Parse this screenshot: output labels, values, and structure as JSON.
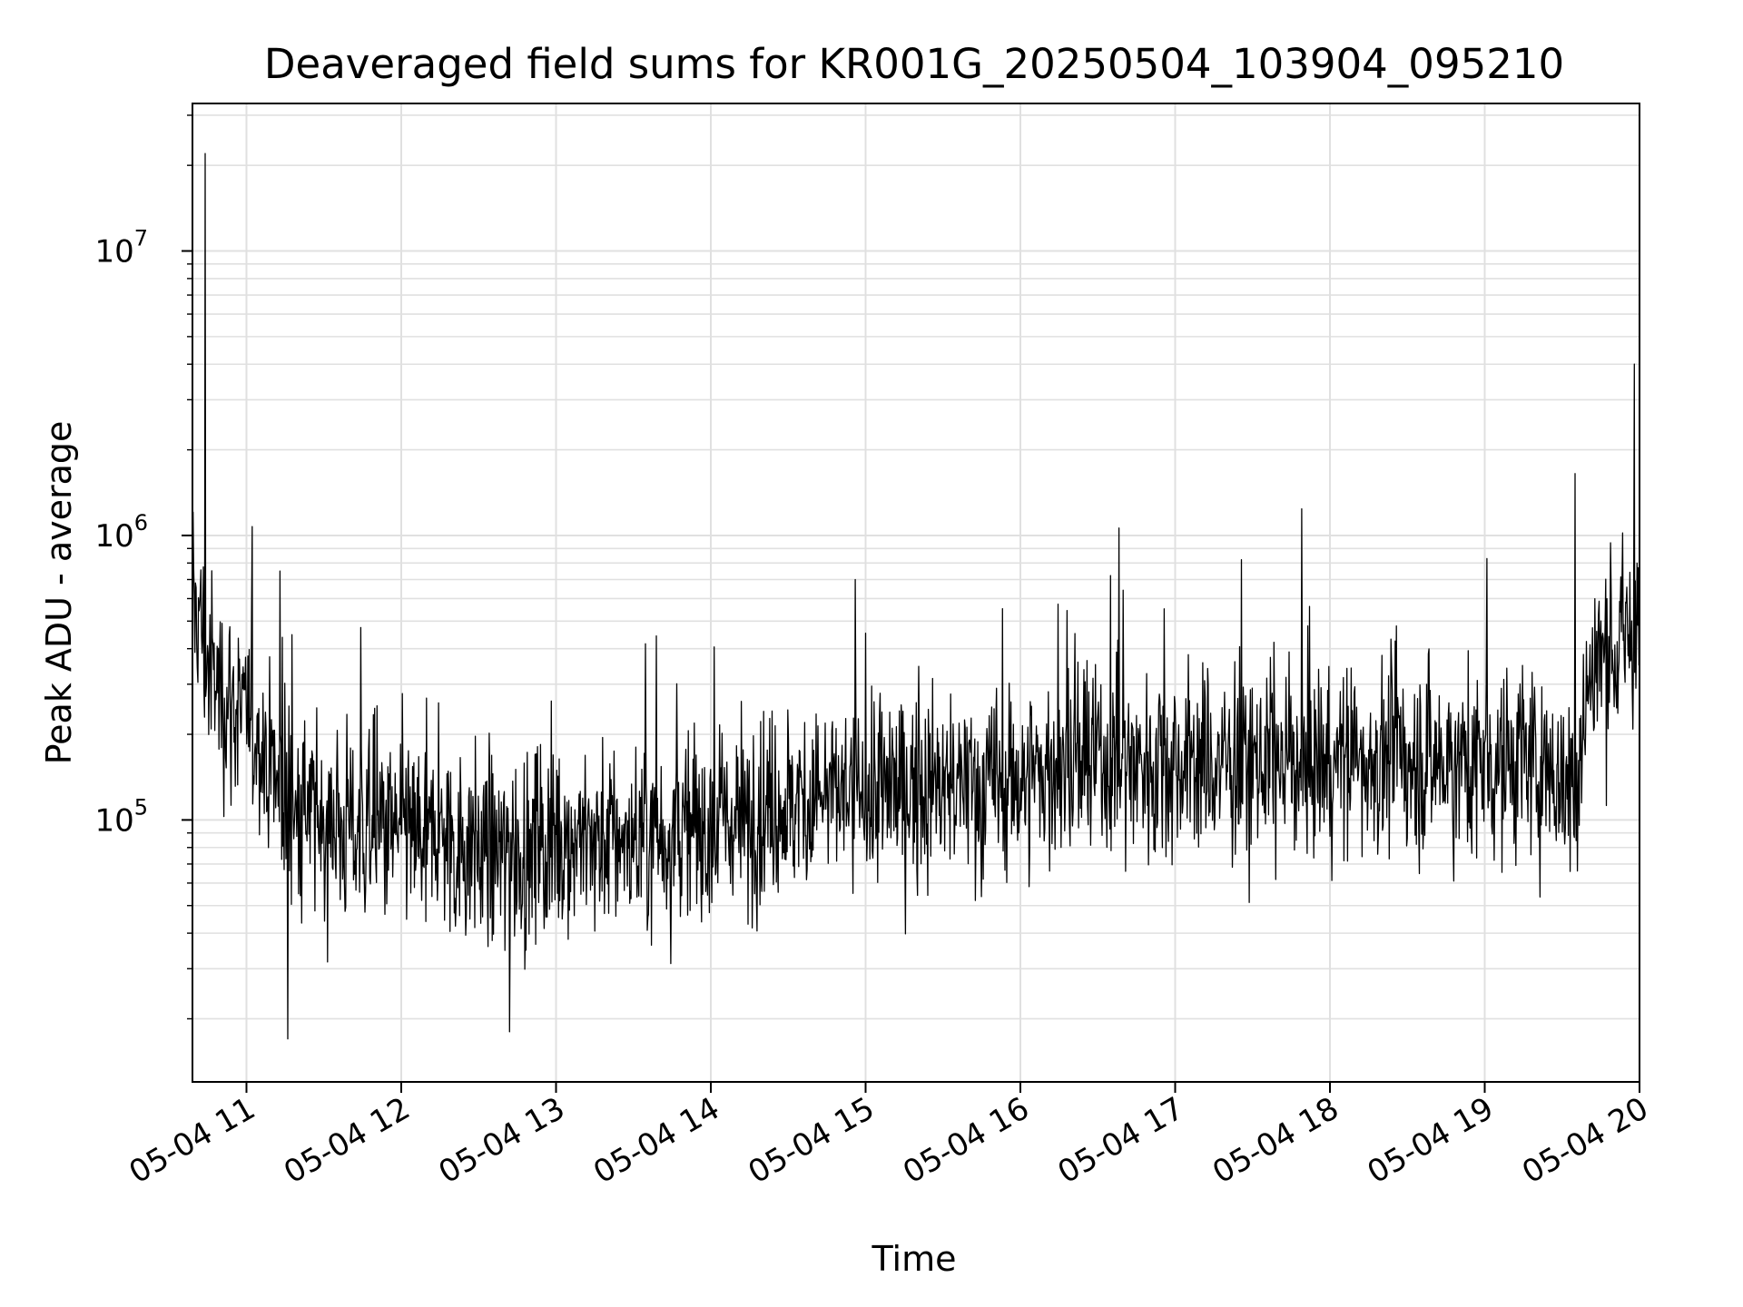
{
  "chart_data": {
    "type": "line",
    "title": "Deaveraged field sums for KR001G_20250504_103904_095210",
    "xlabel": "Time",
    "ylabel": "Peak ADU - average",
    "xscale": "time",
    "yscale": "log",
    "xlim": [
      "2025-05-04T10:39:04",
      "2025-05-04T20:00:00"
    ],
    "ylim": [
      12000,
      33000000
    ],
    "grid": true,
    "legend": "none",
    "line_color": "#000000",
    "grid_color": "#e0e0e0",
    "x_ticks": [
      {
        "t": "2025-05-04T11:00:00",
        "label": "05-04 11"
      },
      {
        "t": "2025-05-04T12:00:00",
        "label": "05-04 12"
      },
      {
        "t": "2025-05-04T13:00:00",
        "label": "05-04 13"
      },
      {
        "t": "2025-05-04T14:00:00",
        "label": "05-04 14"
      },
      {
        "t": "2025-05-04T15:00:00",
        "label": "05-04 15"
      },
      {
        "t": "2025-05-04T16:00:00",
        "label": "05-04 16"
      },
      {
        "t": "2025-05-04T17:00:00",
        "label": "05-04 17"
      },
      {
        "t": "2025-05-04T18:00:00",
        "label": "05-04 18"
      },
      {
        "t": "2025-05-04T19:00:00",
        "label": "05-04 19"
      },
      {
        "t": "2025-05-04T20:00:00",
        "label": "05-04 20"
      }
    ],
    "y_ticks": [
      {
        "value": 100000,
        "base": "10",
        "exp": "5"
      },
      {
        "value": 1000000,
        "base": "10",
        "exp": "6"
      },
      {
        "value": 10000000,
        "base": "10",
        "exp": "7"
      }
    ],
    "series": [
      {
        "x": [
          "2025-05-04T10:39:04",
          "2025-05-04T10:42:00",
          "2025-05-04T10:45:00",
          "2025-05-04T10:48:00",
          "2025-05-04T10:51:00",
          "2025-05-04T10:54:00",
          "2025-05-04T10:57:00",
          "2025-05-04T11:00:00",
          "2025-05-04T11:05:00",
          "2025-05-04T11:10:00",
          "2025-05-04T11:15:00",
          "2025-05-04T11:20:00",
          "2025-05-04T11:25:00",
          "2025-05-04T11:30:00",
          "2025-05-04T11:40:00",
          "2025-05-04T11:50:00",
          "2025-05-04T12:00:00",
          "2025-05-04T12:15:00",
          "2025-05-04T12:30:00",
          "2025-05-04T12:45:00",
          "2025-05-04T13:00:00",
          "2025-05-04T13:15:00",
          "2025-05-04T13:30:00",
          "2025-05-04T13:45:00",
          "2025-05-04T14:00:00",
          "2025-05-04T14:15:00",
          "2025-05-04T14:30:00",
          "2025-05-04T14:45:00",
          "2025-05-04T15:00:00",
          "2025-05-04T15:15:00",
          "2025-05-04T15:30:00",
          "2025-05-04T15:45:00",
          "2025-05-04T16:00:00",
          "2025-05-04T16:15:00",
          "2025-05-04T16:30:00",
          "2025-05-04T16:45:00",
          "2025-05-04T17:00:00",
          "2025-05-04T17:15:00",
          "2025-05-04T17:30:00",
          "2025-05-04T17:45:00",
          "2025-05-04T18:00:00",
          "2025-05-04T18:15:00",
          "2025-05-04T18:30:00",
          "2025-05-04T18:45:00",
          "2025-05-04T19:00:00",
          "2025-05-04T19:10:00",
          "2025-05-04T19:20:00",
          "2025-05-04T19:30:00",
          "2025-05-04T19:35:00",
          "2025-05-04T19:40:00",
          "2025-05-04T19:45:00",
          "2025-05-04T19:50:00",
          "2025-05-04T19:55:00",
          "2025-05-04T20:00:00"
        ],
        "y": [
          600000,
          500000,
          350000,
          300000,
          280000,
          260000,
          240000,
          220000,
          200000,
          150000,
          120000,
          110000,
          105000,
          100000,
          95000,
          90000,
          90000,
          85000,
          80000,
          75000,
          90000,
          85000,
          85000,
          90000,
          95000,
          105000,
          115000,
          120000,
          125000,
          130000,
          130000,
          130000,
          140000,
          150000,
          160000,
          160000,
          160000,
          155000,
          160000,
          160000,
          160000,
          165000,
          165000,
          160000,
          160000,
          160000,
          160000,
          140000,
          120000,
          300000,
          380000,
          400000,
          420000,
          450000
        ],
        "spikes": [
          {
            "t": "2025-05-04T10:44:00",
            "y": 22000000
          },
          {
            "t": "2025-05-04T11:16:00",
            "y": 17000
          },
          {
            "t": "2025-05-04T11:13:00",
            "y": 750000
          },
          {
            "t": "2025-05-04T12:42:00",
            "y": 18000
          },
          {
            "t": "2025-05-04T14:56:00",
            "y": 700000
          },
          {
            "t": "2025-05-04T19:35:00",
            "y": 1650000
          },
          {
            "t": "2025-05-04T19:58:00",
            "y": 4000000
          }
        ]
      }
    ]
  }
}
